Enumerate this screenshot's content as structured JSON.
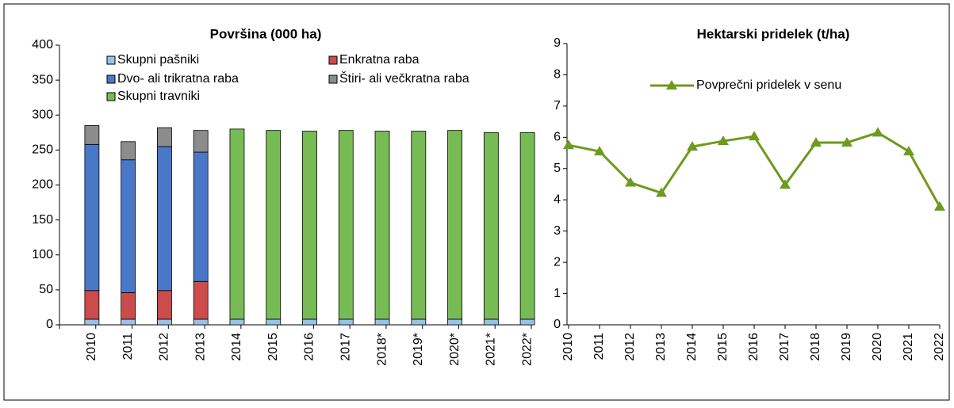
{
  "chart_data": [
    {
      "type": "stacked-bar",
      "title": "Površina (000 ha)",
      "categories": [
        "2010",
        "2011",
        "2012",
        "2013",
        "2014",
        "2015",
        "2016",
        "2017",
        "2018*",
        "2019*",
        "2020*",
        "2021*",
        "2022*"
      ],
      "series": [
        {
          "name": "Skupni pašniki",
          "color": "#99c2e8",
          "values": [
            8,
            8,
            8,
            8,
            8,
            8,
            8,
            8,
            8,
            8,
            8,
            8,
            8
          ]
        },
        {
          "name": "Enkratna raba",
          "color": "#cc4b4b",
          "values": [
            41,
            38,
            41,
            54,
            null,
            null,
            null,
            null,
            null,
            null,
            null,
            null,
            null
          ]
        },
        {
          "name": "Dvo- ali trikratna raba",
          "color": "#4a78c8",
          "values": [
            209,
            190,
            206,
            185,
            null,
            null,
            null,
            null,
            null,
            null,
            null,
            null,
            null
          ]
        },
        {
          "name": "Štiri- ali večkratna raba",
          "color": "#8c8c8c",
          "values": [
            27,
            26,
            27,
            31,
            null,
            null,
            null,
            null,
            null,
            null,
            null,
            null,
            null
          ]
        },
        {
          "name": "Skupni travniki",
          "color": "#77bb55",
          "values": [
            null,
            null,
            null,
            null,
            272,
            270,
            269,
            270,
            269,
            269,
            270,
            267,
            267
          ]
        }
      ],
      "ylim": [
        0,
        400
      ],
      "yticks": [
        0,
        50,
        100,
        150,
        200,
        250,
        300,
        350,
        400
      ]
    },
    {
      "type": "line",
      "title": "Hektarski pridelek (t/ha)",
      "categories": [
        "2010",
        "2011",
        "2012",
        "2013",
        "2014",
        "2015",
        "2016",
        "2017",
        "2018",
        "2019",
        "2020",
        "2021",
        "2022"
      ],
      "series": [
        {
          "name": "Povprečni pridelek v senu",
          "color": "#6e9a1e",
          "values": [
            5.75,
            5.55,
            4.55,
            4.22,
            5.7,
            5.88,
            6.03,
            4.48,
            5.83,
            5.83,
            6.15,
            5.55,
            3.78
          ]
        }
      ],
      "ylim": [
        0,
        9
      ],
      "yticks": [
        0,
        1,
        2,
        3,
        4,
        5,
        6,
        7,
        8,
        9
      ]
    }
  ]
}
